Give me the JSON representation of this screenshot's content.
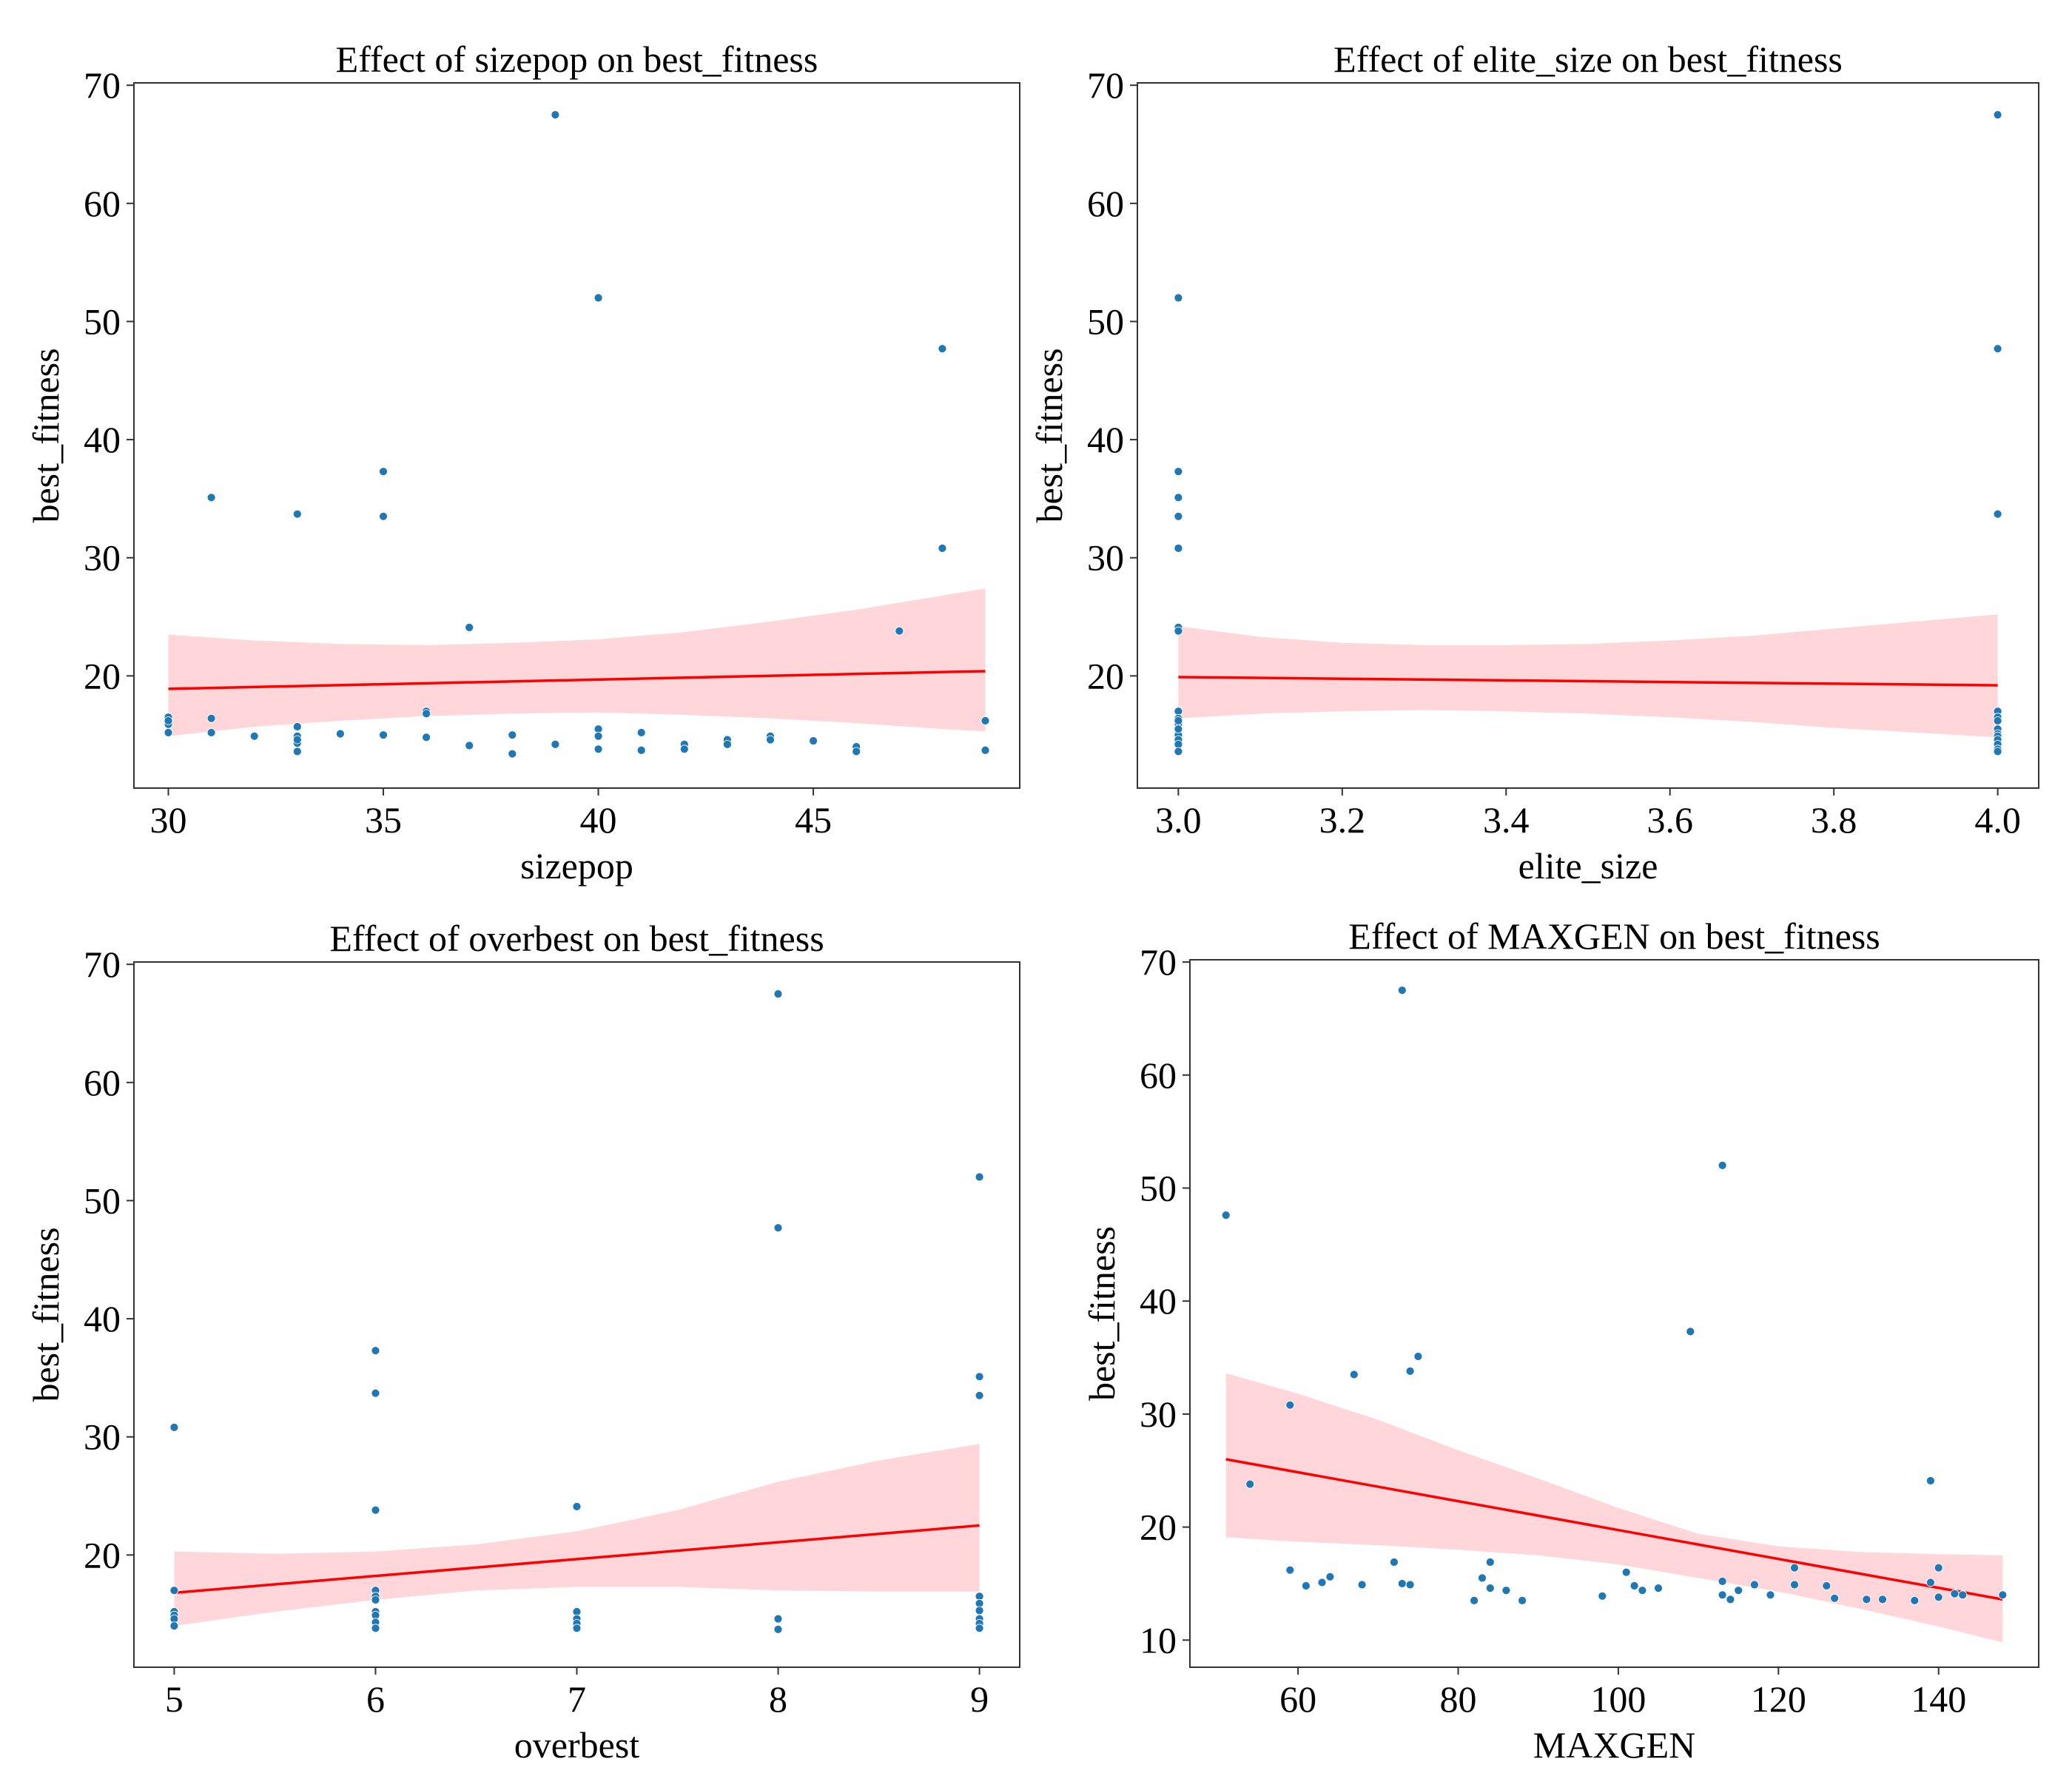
{
  "chart_data": [
    {
      "type": "scatter",
      "title": "Effect of sizepop on best_fitness",
      "xlabel": "sizepop",
      "ylabel": "best_fitness",
      "xlim": [
        29.2,
        49.8
      ],
      "ylim": [
        10.5,
        70.2
      ],
      "xticks": [
        30,
        35,
        40,
        45
      ],
      "yticks": [
        20,
        30,
        40,
        50,
        60,
        70
      ],
      "colors": {
        "points": "#1f77b4",
        "fit": "#ff0000",
        "band": "#ffcfd3"
      },
      "points": {
        "x": [
          30,
          30,
          30,
          30,
          31,
          31,
          31,
          32,
          33,
          33,
          33,
          33,
          33,
          33,
          34,
          35,
          35,
          35,
          36,
          36,
          36,
          37,
          37,
          38,
          38,
          39,
          39,
          40,
          40,
          40,
          40,
          41,
          41,
          42,
          42,
          43,
          43,
          44,
          44,
          45,
          46,
          46,
          47,
          48,
          48,
          49,
          49
        ],
        "y": [
          16.5,
          15.9,
          15.2,
          16.2,
          35.1,
          16.4,
          15.2,
          14.9,
          33.7,
          15.7,
          14.9,
          14.3,
          13.6,
          14.6,
          15.1,
          37.3,
          33.5,
          15.0,
          17.0,
          16.8,
          14.8,
          24.1,
          14.1,
          15.0,
          13.4,
          67.5,
          14.2,
          52.0,
          15.5,
          14.9,
          13.8,
          15.2,
          13.7,
          14.2,
          13.8,
          14.6,
          14.2,
          14.9,
          14.6,
          14.5,
          14.0,
          13.6,
          23.8,
          47.7,
          30.8,
          16.2,
          13.7
        ]
      },
      "fit": {
        "x": [
          30,
          49
        ],
        "y": [
          18.9,
          20.4
        ]
      },
      "band": {
        "x": [
          30,
          32,
          34,
          36,
          38,
          40,
          42,
          44,
          46,
          48,
          49
        ],
        "upper": [
          23.5,
          23.0,
          22.7,
          22.6,
          22.8,
          23.1,
          23.7,
          24.6,
          25.6,
          26.8,
          27.4
        ],
        "lower": [
          14.9,
          15.7,
          16.2,
          16.6,
          16.8,
          16.9,
          16.7,
          16.4,
          16.0,
          15.5,
          15.3
        ]
      }
    },
    {
      "type": "scatter",
      "title": "Effect of elite_size on best_fitness",
      "xlabel": "elite_size",
      "ylabel": "best_fitness",
      "xlim": [
        2.95,
        4.05
      ],
      "ylim": [
        10.5,
        70.2
      ],
      "xticks": [
        "3.0",
        "3.2",
        "3.4",
        "3.6",
        "3.8",
        "4.0"
      ],
      "yticks": [
        20,
        30,
        40,
        50,
        60,
        70
      ],
      "colors": {
        "points": "#1f77b4",
        "fit": "#ff0000",
        "band": "#ffcfd3"
      },
      "points": {
        "x": [
          3,
          3,
          3,
          3,
          3,
          3,
          3,
          3,
          3,
          3,
          3,
          3,
          3,
          3,
          3,
          3,
          4,
          4,
          4,
          4,
          4,
          4,
          4,
          4,
          4,
          4,
          4,
          4,
          4
        ],
        "y": [
          52.0,
          37.3,
          35.1,
          33.5,
          30.8,
          24.1,
          23.8,
          17.0,
          16.4,
          15.9,
          15.0,
          14.6,
          14.2,
          13.6,
          16.2,
          15.5,
          67.5,
          47.7,
          33.7,
          17.0,
          16.5,
          16.2,
          15.5,
          15.1,
          14.9,
          14.6,
          14.2,
          13.8,
          13.6
        ]
      },
      "fit": {
        "x": [
          3,
          4
        ],
        "y": [
          19.9,
          19.2
        ]
      },
      "band": {
        "x": [
          3.0,
          3.1,
          3.2,
          3.3,
          3.4,
          3.5,
          3.6,
          3.7,
          3.8,
          3.9,
          4.0
        ],
        "upper": [
          24.2,
          23.3,
          22.8,
          22.6,
          22.6,
          22.7,
          23.0,
          23.4,
          24.0,
          24.6,
          25.2
        ],
        "lower": [
          16.4,
          16.8,
          17.0,
          17.1,
          17.0,
          16.8,
          16.5,
          16.1,
          15.6,
          15.2,
          14.8
        ]
      }
    },
    {
      "type": "scatter",
      "title": "Effect of overbest on best_fitness",
      "xlabel": "overbest",
      "ylabel": "best_fitness",
      "xlim": [
        4.8,
        9.2
      ],
      "ylim": [
        10.5,
        70.2
      ],
      "xticks": [
        5,
        6,
        7,
        8,
        9
      ],
      "yticks": [
        20,
        30,
        40,
        50,
        60,
        70
      ],
      "colors": {
        "points": "#1f77b4",
        "fit": "#ff0000",
        "band": "#ffcfd3"
      },
      "points": {
        "x": [
          5,
          5,
          5,
          5,
          5,
          5,
          6,
          6,
          6,
          6,
          6,
          6,
          6,
          6,
          6,
          6,
          7,
          7,
          7,
          7,
          7,
          8,
          8,
          8,
          8,
          9,
          9,
          9,
          9,
          9,
          9,
          9,
          9,
          9
        ],
        "y": [
          30.8,
          17.0,
          15.2,
          14.9,
          14.6,
          14.0,
          37.3,
          33.7,
          23.8,
          17.0,
          16.5,
          16.2,
          15.2,
          14.9,
          14.3,
          13.8,
          24.1,
          15.2,
          14.6,
          14.2,
          13.8,
          67.5,
          47.7,
          14.6,
          13.7,
          52.0,
          35.1,
          33.5,
          16.5,
          15.9,
          15.3,
          14.6,
          14.2,
          13.8
        ]
      },
      "fit": {
        "x": [
          5,
          9
        ],
        "y": [
          16.8,
          22.5
        ]
      },
      "band": {
        "x": [
          5,
          5.5,
          6,
          6.5,
          7,
          7.5,
          8,
          8.5,
          9
        ],
        "upper": [
          20.3,
          20.1,
          20.3,
          20.9,
          22.0,
          23.8,
          26.2,
          28.0,
          29.4
        ],
        "lower": [
          14.0,
          15.2,
          16.2,
          17.0,
          17.3,
          17.3,
          17.0,
          16.9,
          16.9
        ]
      }
    },
    {
      "type": "scatter",
      "title": "Effect of MAXGEN on best_fitness",
      "xlabel": "MAXGEN",
      "ylabel": "best_fitness",
      "xlim": [
        46.5,
        152.5
      ],
      "ylim": [
        7.6,
        70.2
      ],
      "xticks": [
        60,
        80,
        100,
        120,
        140
      ],
      "yticks": [
        10,
        20,
        30,
        40,
        50,
        60,
        70
      ],
      "colors": {
        "points": "#1f77b4",
        "fit": "#ff0000",
        "band": "#ffcfd3"
      },
      "points": {
        "x": [
          51,
          54,
          59,
          59,
          61,
          63,
          64,
          67,
          68,
          72,
          73,
          73,
          74,
          74,
          75,
          82,
          83,
          84,
          84,
          86,
          88,
          98,
          101,
          102,
          103,
          105,
          109,
          113,
          113,
          113,
          114,
          115,
          117,
          119,
          122,
          122,
          126,
          127,
          131,
          133,
          137,
          139,
          139,
          140,
          140,
          142,
          143,
          148
        ],
        "y": [
          47.6,
          23.8,
          30.8,
          16.2,
          14.8,
          15.1,
          15.6,
          33.5,
          14.9,
          16.9,
          67.5,
          15.0,
          33.8,
          14.9,
          35.1,
          13.5,
          15.5,
          16.9,
          14.6,
          14.4,
          13.5,
          13.9,
          16.0,
          14.8,
          14.4,
          14.6,
          37.3,
          52.0,
          15.2,
          14.0,
          13.6,
          14.4,
          14.9,
          14.0,
          16.4,
          14.9,
          14.8,
          13.7,
          13.6,
          13.6,
          13.5,
          24.1,
          15.1,
          16.4,
          13.8,
          14.1,
          14.0,
          14.0
        ]
      },
      "fit": {
        "x": [
          51,
          148
        ],
        "y": [
          26.0,
          13.6
        ]
      },
      "band": {
        "x": [
          51,
          60,
          70,
          80,
          90,
          100,
          110,
          120,
          130,
          140,
          148
        ],
        "upper": [
          33.6,
          31.8,
          29.5,
          26.8,
          24.3,
          21.7,
          19.4,
          18.3,
          17.8,
          17.6,
          17.5
        ],
        "lower": [
          19.1,
          18.7,
          18.4,
          18.0,
          17.5,
          16.7,
          15.5,
          14.3,
          12.8,
          11.2,
          9.8
        ]
      }
    }
  ]
}
